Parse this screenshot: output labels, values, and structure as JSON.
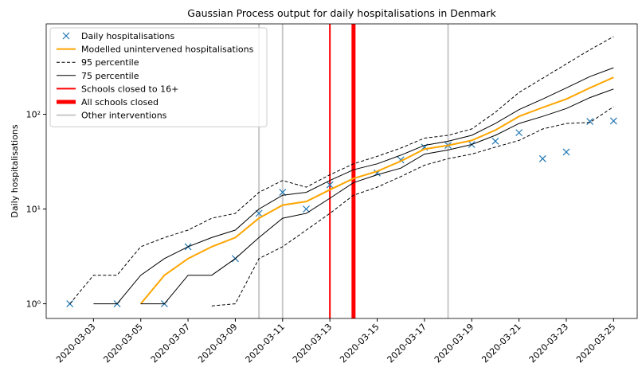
{
  "chart_data": {
    "type": "line",
    "title": "Gaussian Process output for daily hospitalisations in Denmark",
    "ylabel": "Daily hospitalisations",
    "log_y": true,
    "xlim": [
      "2020-03-01",
      "2020-03-26"
    ],
    "ylim": [
      0.7,
      900
    ],
    "yticks": [
      {
        "value": 1,
        "label": "10⁰"
      },
      {
        "value": 10,
        "label": "10¹"
      },
      {
        "value": 100,
        "label": "10²"
      }
    ],
    "xticks": [
      "2020-03-03",
      "2020-03-05",
      "2020-03-07",
      "2020-03-09",
      "2020-03-11",
      "2020-03-13",
      "2020-03-15",
      "2020-03-17",
      "2020-03-19",
      "2020-03-21",
      "2020-03-23",
      "2020-03-25"
    ],
    "x": [
      "2020-03-02",
      "2020-03-03",
      "2020-03-04",
      "2020-03-05",
      "2020-03-06",
      "2020-03-07",
      "2020-03-08",
      "2020-03-09",
      "2020-03-10",
      "2020-03-11",
      "2020-03-12",
      "2020-03-13",
      "2020-03-14",
      "2020-03-15",
      "2020-03-16",
      "2020-03-17",
      "2020-03-18",
      "2020-03-19",
      "2020-03-20",
      "2020-03-21",
      "2020-03-22",
      "2020-03-23",
      "2020-03-24",
      "2020-03-25"
    ],
    "series": [
      {
        "name": "Daily hospitalisations",
        "color": "#1f77b4",
        "marker": "x",
        "x": [
          "2020-03-02",
          "2020-03-04",
          "2020-03-06",
          "2020-03-07",
          "2020-03-09",
          "2020-03-10",
          "2020-03-11",
          "2020-03-12",
          "2020-03-13",
          "2020-03-15",
          "2020-03-16",
          "2020-03-17",
          "2020-03-18",
          "2020-03-19",
          "2020-03-20",
          "2020-03-21",
          "2020-03-22",
          "2020-03-23",
          "2020-03-24",
          "2020-03-25"
        ],
        "values": [
          1,
          1,
          1,
          4,
          3,
          9,
          15,
          10,
          18,
          24,
          33,
          45,
          47,
          48,
          52,
          64,
          34,
          40,
          84,
          85
        ]
      },
      {
        "name": "Modelled unintervened hospitalisations",
        "color": "#ffa500",
        "width": 2,
        "values": [
          null,
          null,
          null,
          1,
          2,
          3,
          4,
          5,
          8,
          11,
          12,
          16,
          21,
          25,
          32,
          43,
          47,
          53,
          68,
          95,
          118,
          145,
          190,
          245
        ]
      },
      {
        "name": "95 percentile",
        "color": "#000000",
        "width": 1,
        "dash": true,
        "values": [
          1,
          2,
          2,
          4,
          5,
          6,
          8,
          9,
          15,
          20,
          17,
          23,
          30,
          36,
          44,
          56,
          60,
          70,
          105,
          170,
          240,
          340,
          480,
          660
        ],
        "lower": [
          null,
          null,
          null,
          null,
          null,
          null,
          0.95,
          1,
          3,
          4,
          6,
          9,
          14,
          17,
          22,
          29,
          34,
          38,
          45,
          53,
          70,
          80,
          82,
          120
        ]
      },
      {
        "name": "75 percentile",
        "color": "#000000",
        "width": 1,
        "values": [
          null,
          1,
          1,
          2,
          3,
          4,
          5,
          6,
          10,
          14,
          15,
          20,
          26,
          30,
          37,
          47,
          52,
          60,
          80,
          112,
          145,
          190,
          250,
          310
        ],
        "lower": [
          null,
          null,
          null,
          1,
          1,
          2,
          2,
          3,
          5,
          8,
          9,
          13,
          19,
          23,
          27,
          38,
          42,
          48,
          60,
          80,
          95,
          115,
          150,
          185
        ]
      }
    ],
    "vlines": [
      {
        "name": "Schools closed to 16+",
        "color": "#ff0000",
        "width": 2,
        "x": [
          "2020-03-13"
        ]
      },
      {
        "name": "All schools closed",
        "color": "#ff0000",
        "width": 5,
        "x": [
          "2020-03-14"
        ]
      },
      {
        "name": "Other interventions",
        "color": "#c8c8c8",
        "width": 2,
        "x": [
          "2020-03-10",
          "2020-03-11",
          "2020-03-18"
        ]
      }
    ]
  }
}
